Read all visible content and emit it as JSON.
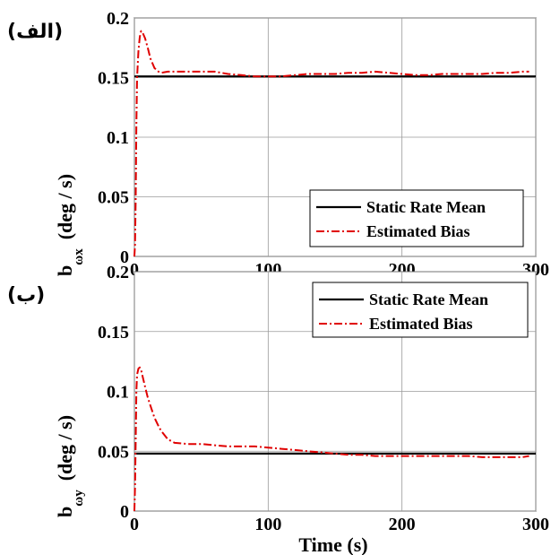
{
  "chart_data": [
    {
      "type": "line",
      "panel_label": "(الف)",
      "ylabel": "b",
      "ylabel_subscript": "ωx",
      "ylabel_unit": "(deg / s)",
      "xlabel": "",
      "xlim": [
        0,
        300
      ],
      "ylim": [
        0,
        0.2
      ],
      "xticks": [
        "0",
        "100",
        "200",
        "300"
      ],
      "yticks": [
        "0",
        "0.05",
        "0.1",
        "0.15",
        "0.2"
      ],
      "grid": true,
      "legend_position": "bottom-right",
      "series": [
        {
          "name": "Static Rate Mean",
          "style": "solid",
          "color": "#000000",
          "x": [
            0,
            300
          ],
          "y": [
            0.151,
            0.151
          ]
        },
        {
          "name": "Estimated Bias",
          "style": "dash-dot",
          "color": "#e00000",
          "x": [
            0,
            0.5,
            1,
            1.5,
            2,
            3,
            4,
            5,
            6,
            8,
            10,
            12,
            15,
            18,
            20,
            25,
            30,
            40,
            50,
            60,
            70,
            80,
            90,
            100,
            110,
            120,
            130,
            140,
            150,
            160,
            170,
            180,
            190,
            200,
            210,
            220,
            230,
            240,
            250,
            260,
            270,
            280,
            290,
            295
          ],
          "y": [
            0,
            0.01,
            0.05,
            0.11,
            0.15,
            0.172,
            0.184,
            0.189,
            0.188,
            0.183,
            0.175,
            0.166,
            0.158,
            0.155,
            0.154,
            0.155,
            0.155,
            0.155,
            0.155,
            0.155,
            0.153,
            0.152,
            0.151,
            0.151,
            0.151,
            0.152,
            0.153,
            0.153,
            0.153,
            0.154,
            0.154,
            0.155,
            0.154,
            0.153,
            0.152,
            0.152,
            0.153,
            0.153,
            0.153,
            0.153,
            0.154,
            0.154,
            0.155,
            0.155
          ]
        }
      ]
    },
    {
      "type": "line",
      "panel_label": "(ب)",
      "ylabel": "b",
      "ylabel_subscript": "ωy",
      "ylabel_unit": "(deg / s)",
      "xlabel": "Time (s)",
      "xlim": [
        0,
        300
      ],
      "ylim": [
        0,
        0.2
      ],
      "xticks": [
        "0",
        "100",
        "200",
        "300"
      ],
      "yticks": [
        "0",
        "0.05",
        "0.1",
        "0.15",
        "0.2"
      ],
      "grid": true,
      "legend_position": "top-right",
      "series": [
        {
          "name": "Static Rate Mean",
          "style": "solid",
          "color": "#000000",
          "x": [
            0,
            300
          ],
          "y": [
            0.048,
            0.048
          ]
        },
        {
          "name": "Estimated Bias",
          "style": "dash-dot",
          "color": "#e00000",
          "x": [
            0,
            0.5,
            1,
            1.5,
            2,
            3,
            4,
            5,
            6,
            8,
            10,
            12,
            15,
            18,
            20,
            25,
            30,
            40,
            50,
            60,
            70,
            80,
            90,
            100,
            110,
            120,
            130,
            140,
            150,
            160,
            170,
            180,
            190,
            200,
            210,
            220,
            230,
            240,
            250,
            260,
            270,
            280,
            290,
            295
          ],
          "y": [
            0,
            0.02,
            0.06,
            0.1,
            0.114,
            0.119,
            0.12,
            0.118,
            0.113,
            0.104,
            0.095,
            0.088,
            0.078,
            0.071,
            0.067,
            0.06,
            0.057,
            0.056,
            0.056,
            0.055,
            0.054,
            0.054,
            0.054,
            0.053,
            0.052,
            0.051,
            0.05,
            0.049,
            0.048,
            0.047,
            0.047,
            0.046,
            0.046,
            0.046,
            0.046,
            0.046,
            0.046,
            0.046,
            0.046,
            0.045,
            0.045,
            0.045,
            0.045,
            0.046
          ]
        }
      ]
    }
  ]
}
